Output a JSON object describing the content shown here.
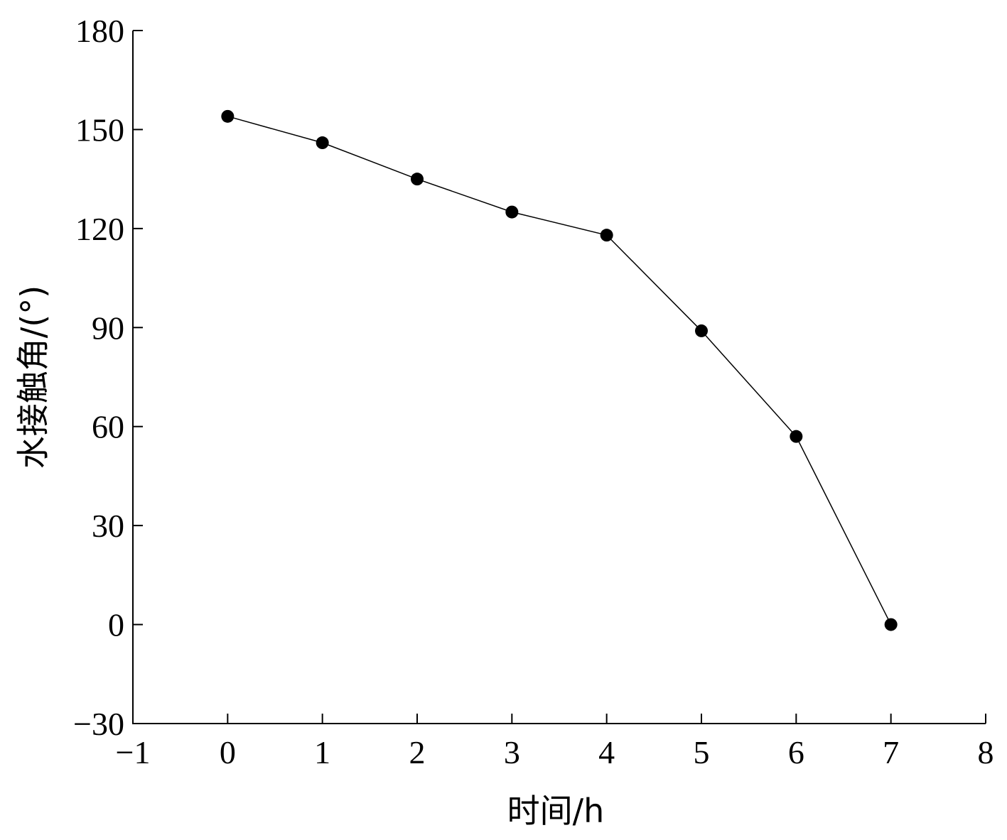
{
  "chart_data": {
    "type": "line",
    "xlabel": "时间/h",
    "ylabel": "水接触角/(°)",
    "xlim": [
      -1,
      8
    ],
    "ylim": [
      -30,
      180
    ],
    "xticks": [
      -1,
      0,
      1,
      2,
      3,
      4,
      5,
      6,
      7,
      8
    ],
    "yticks": [
      -30,
      0,
      30,
      60,
      90,
      120,
      150,
      180
    ],
    "xtick_labels": [
      "−1",
      "0",
      "1",
      "2",
      "3",
      "4",
      "5",
      "6",
      "7",
      "8"
    ],
    "ytick_labels": [
      "−30",
      "0",
      "30",
      "60",
      "90",
      "120",
      "150",
      "180"
    ],
    "grid": false,
    "legend": "none",
    "series": [
      {
        "x": [
          0,
          1,
          2,
          3,
          4,
          5,
          6,
          7
        ],
        "y": [
          154,
          146,
          135,
          125,
          118,
          89,
          57,
          0
        ],
        "color": "#000000",
        "marker": "filled-circle"
      }
    ]
  }
}
